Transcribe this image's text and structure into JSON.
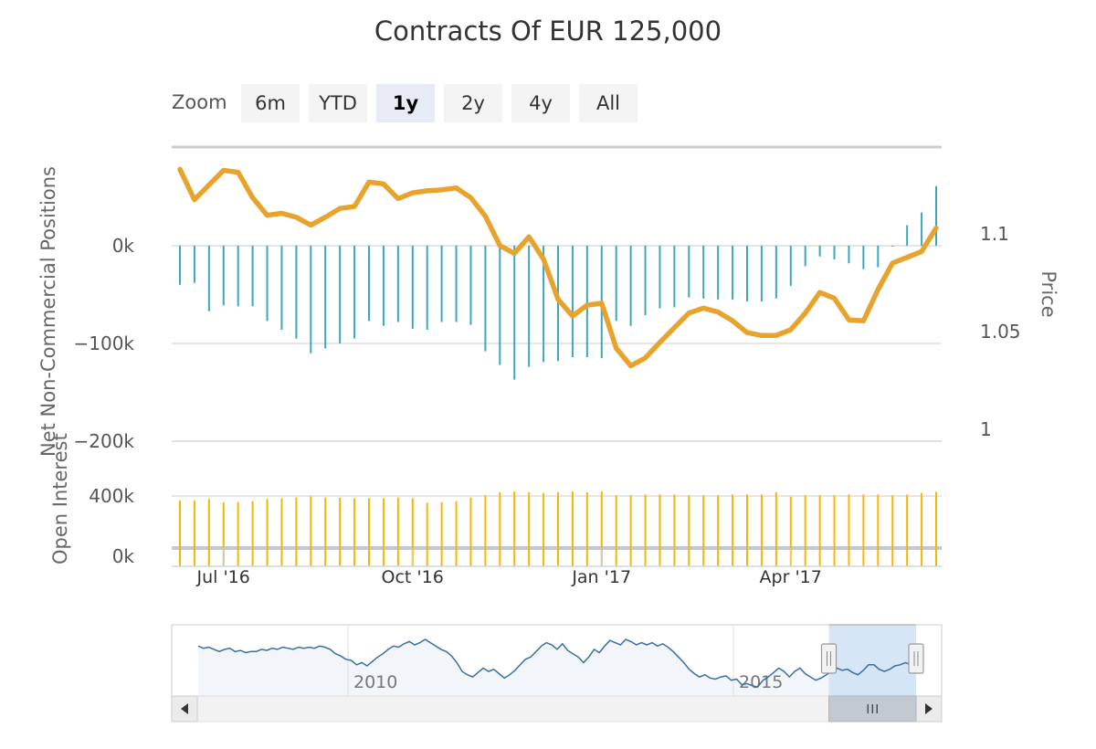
{
  "colors": {
    "price": "#e8a32d",
    "positions": "#3ba7c0",
    "open_interest": "#f5b800",
    "navigator_line": "#3a6fa6",
    "navigator_mask": "#cfe2f6",
    "grid": "#d6d6d6",
    "axis_text": "#555555"
  },
  "rangeSelector": {
    "zoom_label": "Zoom",
    "buttons": [
      {
        "label": "6m",
        "active": false
      },
      {
        "label": "YTD",
        "active": false
      },
      {
        "label": "1y",
        "active": true
      },
      {
        "label": "2y",
        "active": false
      },
      {
        "label": "4y",
        "active": false
      },
      {
        "label": "All",
        "active": false
      }
    ]
  },
  "chart_data": {
    "type": "line",
    "title": "Contracts Of EUR 125,000",
    "panes": [
      {
        "id": "positions",
        "ylabel": "Net Non-Commercial Positions",
        "y_ticks": [
          {
            "v": 0,
            "label": "0k"
          },
          {
            "v": -100,
            "label": "−100k"
          },
          {
            "v": -200,
            "label": "−200k"
          }
        ],
        "ylim": [
          -200,
          100
        ]
      },
      {
        "id": "price",
        "ylabel": "Price",
        "y_ticks": [
          {
            "v": 1.1,
            "label": "1.1"
          },
          {
            "v": 1.05,
            "label": "1.05"
          },
          {
            "v": 1.0,
            "label": "1"
          }
        ],
        "ylim": [
          1.0,
          1.14
        ]
      },
      {
        "id": "open_interest",
        "ylabel": "Open Interest",
        "y_ticks": [
          {
            "v": 400,
            "label": "400k"
          },
          {
            "v": 0,
            "label": "0k"
          }
        ],
        "ylim": [
          0,
          440
        ]
      }
    ],
    "x_ticks": [
      {
        "week": 4,
        "label": "Jul '16"
      },
      {
        "week": 17,
        "label": "Oct '16"
      },
      {
        "week": 30,
        "label": "Jan '17"
      },
      {
        "week": 43,
        "label": "Apr '17"
      }
    ],
    "x_range": [
      0,
      52
    ],
    "series": [
      {
        "name": "Price",
        "type": "line",
        "pane": "price",
        "values": [
          1.133,
          1.1175,
          1.125,
          1.1325,
          1.1315,
          1.1185,
          1.1095,
          1.1105,
          1.1085,
          1.1045,
          1.1085,
          1.113,
          1.114,
          1.1265,
          1.1255,
          1.118,
          1.121,
          1.122,
          1.1225,
          1.1235,
          1.1185,
          1.109,
          1.094,
          1.09,
          1.0985,
          1.087,
          1.0665,
          1.058,
          1.0635,
          1.0645,
          1.0415,
          1.0325,
          1.0365,
          1.0445,
          1.052,
          1.0595,
          1.062,
          1.06,
          1.0555,
          1.0495,
          1.048,
          1.048,
          1.051,
          1.0595,
          1.07,
          1.067,
          1.056,
          1.0555,
          1.0715,
          1.085,
          1.088,
          1.091,
          1.103
        ]
      },
      {
        "name": "Net Non-Commercial Positions",
        "type": "column",
        "pane": "positions",
        "values": [
          -40,
          -38,
          -67,
          -61,
          -62,
          -62,
          -77,
          -86,
          -95,
          -110,
          -105,
          -100,
          -95,
          -77,
          -82,
          -78,
          -85,
          -86,
          -78,
          -78,
          -81,
          -108,
          -122,
          -137,
          -124,
          -119,
          -118,
          -114,
          -114,
          -115,
          -77,
          -82,
          -71,
          -64,
          -63,
          -53,
          -54,
          -55,
          -55,
          -57,
          -57,
          -54,
          -41,
          -21,
          -11,
          -14,
          -18,
          -24,
          -22,
          -1,
          21,
          34,
          61
        ]
      },
      {
        "name": "Open Interest",
        "type": "column",
        "pane": "open_interest",
        "values": [
          370,
          370,
          380,
          358,
          360,
          366,
          380,
          385,
          390,
          397,
          390,
          388,
          385,
          385,
          385,
          390,
          385,
          355,
          360,
          365,
          390,
          405,
          425,
          430,
          424,
          420,
          425,
          430,
          425,
          430,
          405,
          405,
          410,
          410,
          410,
          405,
          405,
          405,
          410,
          410,
          410,
          425,
          395,
          405,
          405,
          405,
          410,
          410,
          410,
          405,
          410,
          420,
          428
        ]
      }
    ]
  },
  "navigator": {
    "year_labels": [
      "2010",
      "2015"
    ],
    "values": [
      1.27,
      1.25,
      1.26,
      1.24,
      1.22,
      1.24,
      1.25,
      1.22,
      1.23,
      1.21,
      1.22,
      1.22,
      1.24,
      1.23,
      1.25,
      1.24,
      1.26,
      1.25,
      1.24,
      1.26,
      1.25,
      1.26,
      1.25,
      1.27,
      1.26,
      1.24,
      1.2,
      1.18,
      1.15,
      1.14,
      1.1,
      1.12,
      1.09,
      1.13,
      1.17,
      1.2,
      1.24,
      1.27,
      1.26,
      1.29,
      1.31,
      1.28,
      1.3,
      1.33,
      1.3,
      1.27,
      1.24,
      1.22,
      1.18,
      1.12,
      1.04,
      1.01,
      0.99,
      1.03,
      1.07,
      1.04,
      1.06,
      1.02,
      0.98,
      1.01,
      1.05,
      1.1,
      1.15,
      1.17,
      1.22,
      1.27,
      1.3,
      1.28,
      1.24,
      1.29,
      1.23,
      1.2,
      1.17,
      1.12,
      1.17,
      1.24,
      1.21,
      1.27,
      1.32,
      1.3,
      1.28,
      1.33,
      1.31,
      1.28,
      1.3,
      1.28,
      1.3,
      1.27,
      1.29,
      1.26,
      1.22,
      1.17,
      1.12,
      1.06,
      1.02,
      0.99,
      1.01,
      0.98,
      0.97,
      0.99,
      1.0,
      0.96,
      0.97,
      0.92,
      0.93,
      0.91,
      0.9,
      0.96,
      0.99,
      1.03,
      1.07,
      1.04,
      0.99,
      1.04,
      1.07,
      1.02,
      0.99,
      0.96,
      0.98,
      1.01,
      1.04,
      1.07,
      1.05,
      1.06,
      1.03,
      1.01,
      1.05,
      1.1,
      1.1,
      1.06,
      1.04,
      1.06,
      1.09,
      1.1,
      1.12,
      1.1,
      1.17
    ],
    "selected_range": [
      0.8785,
      1.0
    ]
  }
}
